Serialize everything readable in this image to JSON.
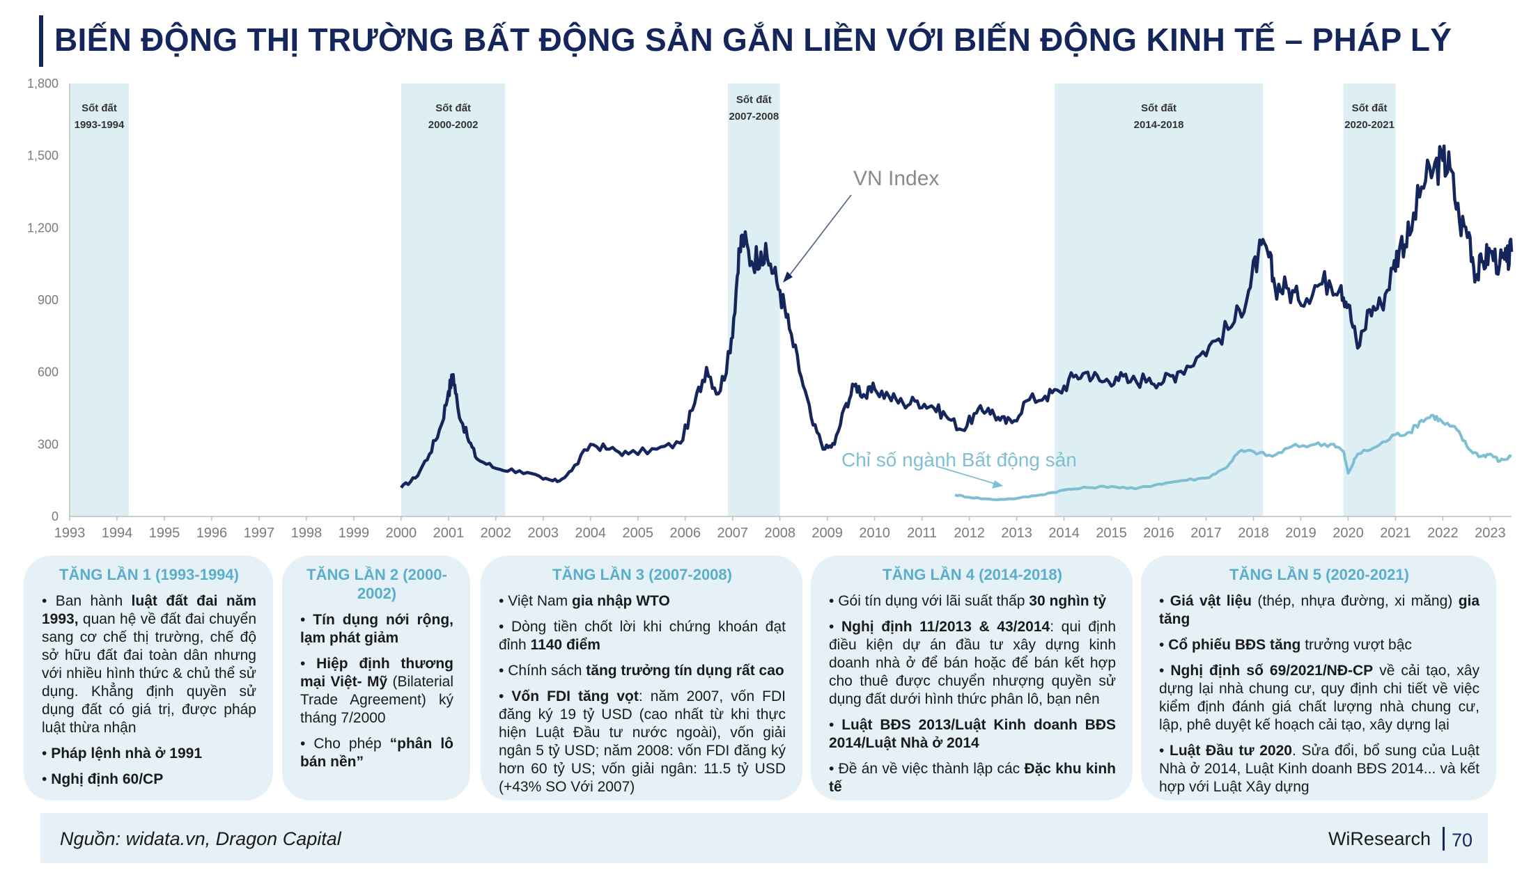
{
  "title": "BIẾN ĐỘNG THỊ TRƯỜNG BẤT ĐỘNG SẢN GẮN LIỀN VỚI BIẾN ĐỘNG KINH TẾ – PHÁP LÝ",
  "colors": {
    "title": "#15265c",
    "vn_index": "#15265c",
    "real_estate": "#7fbfd3",
    "band": "#deeff4",
    "card_bg": "#e5f1f6",
    "card_title": "#5aaecb"
  },
  "chart_data": {
    "type": "line",
    "ylim": [
      0,
      1800
    ],
    "yticks": [
      "0",
      "300",
      "600",
      "900",
      "1,200",
      "1,500",
      "1,800"
    ],
    "xlim": [
      1993,
      2023.45
    ],
    "xticks": [
      "1993",
      "1994",
      "1995",
      "1996",
      "1997",
      "1998",
      "1999",
      "2000",
      "2001",
      "2002",
      "2003",
      "2004",
      "2005",
      "2006",
      "2007",
      "2008",
      "2009",
      "2010",
      "2011",
      "2012",
      "2013",
      "2014",
      "2015",
      "2016",
      "2017",
      "2018",
      "2019",
      "2020",
      "2021",
      "2022",
      "2023"
    ],
    "bands": [
      {
        "label": "Sốt đất",
        "period": "1993-1994",
        "x0": 1993.0,
        "x1": 1994.25
      },
      {
        "label": "Sốt đất",
        "period": "2000-2002",
        "x0": 2000.0,
        "x1": 2002.2
      },
      {
        "label": "Sốt đất",
        "period": "2007-2008",
        "x0": 2006.9,
        "x1": 2008.0
      },
      {
        "label": "Sốt đất",
        "period": "2014-2018",
        "x0": 2013.8,
        "x1": 2018.2
      },
      {
        "label": "Sốt đất",
        "period": "2020-2021",
        "x0": 2019.9,
        "x1": 2021.0
      }
    ],
    "series": [
      {
        "name": "VN Index",
        "color": "#15265c",
        "points": [
          [
            2000.0,
            120
          ],
          [
            2000.3,
            160
          ],
          [
            2000.6,
            260
          ],
          [
            2000.85,
            380
          ],
          [
            2001.0,
            520
          ],
          [
            2001.1,
            590
          ],
          [
            2001.2,
            450
          ],
          [
            2001.4,
            330
          ],
          [
            2001.6,
            240
          ],
          [
            2002.0,
            200
          ],
          [
            2002.5,
            190
          ],
          [
            2003.0,
            155
          ],
          [
            2003.3,
            145
          ],
          [
            2003.6,
            190
          ],
          [
            2004.0,
            300
          ],
          [
            2004.4,
            280
          ],
          [
            2004.8,
            260
          ],
          [
            2005.4,
            280
          ],
          [
            2005.9,
            305
          ],
          [
            2006.2,
            470
          ],
          [
            2006.45,
            620
          ],
          [
            2006.7,
            510
          ],
          [
            2006.95,
            680
          ],
          [
            2007.1,
            1000
          ],
          [
            2007.2,
            1170
          ],
          [
            2007.4,
            1060
          ],
          [
            2007.6,
            1100
          ],
          [
            2007.8,
            1050
          ],
          [
            2008.0,
            940
          ],
          [
            2008.2,
            780
          ],
          [
            2008.45,
            580
          ],
          [
            2008.7,
            380
          ],
          [
            2008.95,
            280
          ],
          [
            2009.15,
            300
          ],
          [
            2009.4,
            470
          ],
          [
            2009.6,
            550
          ],
          [
            2009.8,
            500
          ],
          [
            2010.0,
            530
          ],
          [
            2010.3,
            500
          ],
          [
            2010.6,
            470
          ],
          [
            2010.9,
            480
          ],
          [
            2011.2,
            460
          ],
          [
            2011.5,
            420
          ],
          [
            2011.85,
            360
          ],
          [
            2012.15,
            430
          ],
          [
            2012.4,
            450
          ],
          [
            2012.65,
            400
          ],
          [
            2012.9,
            390
          ],
          [
            2013.2,
            480
          ],
          [
            2013.6,
            500
          ],
          [
            2013.9,
            520
          ],
          [
            2014.2,
            580
          ],
          [
            2014.5,
            600
          ],
          [
            2014.8,
            560
          ],
          [
            2015.1,
            580
          ],
          [
            2015.4,
            560
          ],
          [
            2015.8,
            575
          ],
          [
            2016.1,
            560
          ],
          [
            2016.4,
            600
          ],
          [
            2016.8,
            660
          ],
          [
            2017.2,
            730
          ],
          [
            2017.6,
            810
          ],
          [
            2017.9,
            940
          ],
          [
            2018.1,
            1090
          ],
          [
            2018.3,
            1100
          ],
          [
            2018.45,
            960
          ],
          [
            2018.7,
            950
          ],
          [
            2018.95,
            900
          ],
          [
            2019.3,
            960
          ],
          [
            2019.6,
            980
          ],
          [
            2019.85,
            960
          ],
          [
            2020.0,
            880
          ],
          [
            2020.2,
            700
          ],
          [
            2020.45,
            860
          ],
          [
            2020.7,
            880
          ],
          [
            2020.95,
            1030
          ],
          [
            2021.1,
            1130
          ],
          [
            2021.3,
            1170
          ],
          [
            2021.55,
            1370
          ],
          [
            2021.8,
            1440
          ],
          [
            2022.0,
            1480
          ],
          [
            2022.15,
            1450
          ],
          [
            2022.35,
            1230
          ],
          [
            2022.55,
            1180
          ],
          [
            2022.7,
            1000
          ],
          [
            2022.85,
            1060
          ],
          [
            2023.0,
            1100
          ],
          [
            2023.2,
            1050
          ],
          [
            2023.35,
            1060
          ],
          [
            2023.45,
            1100
          ]
        ]
      },
      {
        "name": "Chỉ số ngành Bất động sản",
        "color": "#7fbfd3",
        "points": [
          [
            2011.7,
            90
          ],
          [
            2012.0,
            80
          ],
          [
            2012.5,
            70
          ],
          [
            2013.0,
            75
          ],
          [
            2013.5,
            90
          ],
          [
            2014.0,
            110
          ],
          [
            2014.5,
            120
          ],
          [
            2015.0,
            125
          ],
          [
            2015.5,
            115
          ],
          [
            2016.0,
            135
          ],
          [
            2016.5,
            150
          ],
          [
            2017.0,
            160
          ],
          [
            2017.4,
            200
          ],
          [
            2017.7,
            270
          ],
          [
            2018.0,
            270
          ],
          [
            2018.4,
            250
          ],
          [
            2018.8,
            290
          ],
          [
            2019.3,
            300
          ],
          [
            2019.7,
            300
          ],
          [
            2019.9,
            270
          ],
          [
            2020.0,
            180
          ],
          [
            2020.2,
            260
          ],
          [
            2020.6,
            290
          ],
          [
            2021.0,
            340
          ],
          [
            2021.3,
            350
          ],
          [
            2021.55,
            400
          ],
          [
            2021.8,
            420
          ],
          [
            2022.0,
            390
          ],
          [
            2022.3,
            360
          ],
          [
            2022.55,
            280
          ],
          [
            2022.8,
            250
          ],
          [
            2023.0,
            260
          ],
          [
            2023.2,
            230
          ],
          [
            2023.45,
            250
          ]
        ]
      }
    ],
    "annotations": [
      {
        "text": "VN Index"
      },
      {
        "text": "Chỉ số ngành Bất động sản"
      }
    ]
  },
  "cards": [
    {
      "title": "TĂNG LẦN 1 (1993-1994)",
      "items": [
        [
          [
            "Ban hành ",
            false
          ],
          [
            "luật đất đai năm 1993,",
            true
          ],
          [
            " quan hệ về đất đai chuyển sang cơ chế thị trường, chế độ sở hữu đất đai toàn dân nhưng với nhiều hình thức & chủ thể sử dụng. Khẳng định quyền sử dụng đất có giá trị, được pháp luật thừa nhận",
            false
          ]
        ],
        [
          [
            "Pháp lệnh nhà ở 1991",
            true
          ]
        ],
        [
          [
            "Nghị định 60/CP",
            true
          ]
        ]
      ]
    },
    {
      "title": "TĂNG LẦN 2 (2000-2002)",
      "items": [
        [
          [
            "Tín dụng nới rộng, lạm phát giảm",
            true
          ]
        ],
        [
          [
            "Hiệp định thương mại Việt- Mỹ",
            true
          ],
          [
            " (Bilaterial Trade Agreement) ký tháng 7/2000",
            false
          ]
        ],
        [
          [
            "Cho phép ",
            false
          ],
          [
            "“phân lô bán nền”",
            true
          ]
        ]
      ]
    },
    {
      "title": "TĂNG LẦN 3 (2007-2008)",
      "items": [
        [
          [
            "Việt Nam ",
            false
          ],
          [
            "gia nhập WTO",
            true
          ]
        ],
        [
          [
            "Dòng tiền chốt lời khi chứng khoán đạt đỉnh ",
            false
          ],
          [
            "1140 điểm",
            true
          ]
        ],
        [
          [
            "Chính sách ",
            false
          ],
          [
            "tăng trưởng tín dụng rất cao",
            true
          ]
        ],
        [
          [
            "Vốn FDI tăng vọt",
            true
          ],
          [
            ": năm 2007, vốn FDI đăng ký 19 tỷ USD (cao nhất từ khi thực hiện Luật Đầu tư nước ngoài), vốn giải ngân 5 tỷ USD; năm 2008: vốn FDI đăng ký hơn 60 tỷ US; vốn giải ngân: 11.5 tỷ USD (+43% SO Với 2007)",
            false
          ]
        ]
      ]
    },
    {
      "title": "TĂNG LẦN 4 (2014-2018)",
      "items": [
        [
          [
            "Gói tín dụng với lãi suất thấp ",
            false
          ],
          [
            "30 nghìn tỷ",
            true
          ]
        ],
        [
          [
            "Nghị định 11/2013 & 43/2014",
            true
          ],
          [
            ": qui định điều kiện dự án đầu tư xây dựng kinh doanh nhà ở để bán hoặc để bán kết hợp cho thuê được chuyển nhượng quyền sử dụng đất dưới hình thức phân lô, bạn nên",
            false
          ]
        ],
        [
          [
            "Luật BĐS 2013/Luật Kinh doanh BĐS 2014/Luật Nhà ở 2014",
            true
          ]
        ],
        [
          [
            "Đề án về việc thành lập các ",
            false
          ],
          [
            "Đặc khu kinh tế",
            true
          ]
        ]
      ]
    },
    {
      "title": "TĂNG LẦN 5 (2020-2021)",
      "items": [
        [
          [
            "Giá vật liệu",
            true
          ],
          [
            " (thép, nhựa đường, xi măng) ",
            false
          ],
          [
            "gia tăng",
            true
          ]
        ],
        [
          [
            "Cổ phiếu BĐS tăng",
            true
          ],
          [
            " trưởng vượt bậc",
            false
          ]
        ],
        [
          [
            "Nghị định số 69/2021/NĐ-CP",
            true
          ],
          [
            " về cải tạo, xây dựng lại nhà chung cư, quy định chi tiết về việc kiểm định đánh giá chất lượng nhà chung cư, lập, phê duyệt kế hoạch cải tạo, xây dựng lại",
            false
          ]
        ],
        [
          [
            "Luật Đầu tư 2020",
            true
          ],
          [
            ". Sửa đổi, bổ sung của Luật Nhà ở 2014, Luật Kinh doanh BĐS 2014... và kết hợp với Luật Xây dựng",
            false
          ]
        ]
      ]
    }
  ],
  "footer": {
    "source": "Nguồn: widata.vn, Dragon Capital",
    "brand": "WiResearch",
    "page": "70"
  }
}
